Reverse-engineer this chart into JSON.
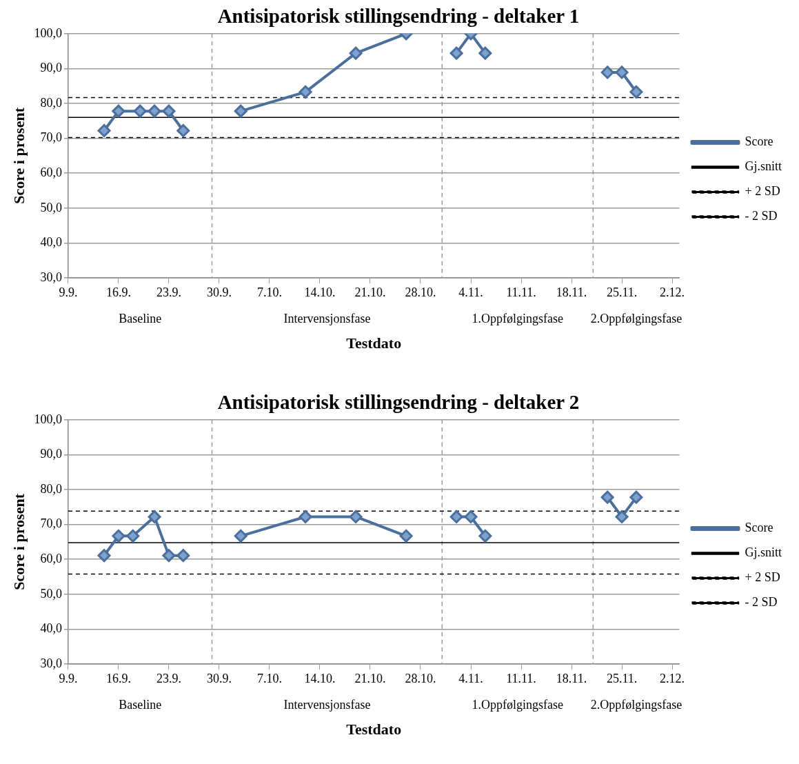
{
  "chart_data": [
    {
      "type": "line",
      "title": "Antisipatorisk stillingsendring - deltaker 1",
      "xlabel": "Testdato",
      "ylabel": "Score i prosent",
      "xlim": [
        "--09-09",
        "--12-03"
      ],
      "ylim": [
        30,
        100
      ],
      "xticks": [
        {
          "value": "--09-09",
          "label": "9.9."
        },
        {
          "value": "--09-16",
          "label": "16.9."
        },
        {
          "value": "--09-23",
          "label": "23.9."
        },
        {
          "value": "--09-30",
          "label": "30.9."
        },
        {
          "value": "--10-07",
          "label": "7.10."
        },
        {
          "value": "--10-14",
          "label": "14.10."
        },
        {
          "value": "--10-21",
          "label": "21.10."
        },
        {
          "value": "--10-28",
          "label": "28.10."
        },
        {
          "value": "--11-04",
          "label": "4.11."
        },
        {
          "value": "--11-11",
          "label": "11.11."
        },
        {
          "value": "--11-18",
          "label": "18.11."
        },
        {
          "value": "--11-25",
          "label": "25.11."
        },
        {
          "value": "--12-02",
          "label": "2.12."
        }
      ],
      "yticks": [
        {
          "value": 30,
          "label": "30,0"
        },
        {
          "value": 40,
          "label": "40,0"
        },
        {
          "value": 50,
          "label": "50,0"
        },
        {
          "value": 60,
          "label": "60,0"
        },
        {
          "value": 70,
          "label": "70,0"
        },
        {
          "value": 80,
          "label": "80,0"
        },
        {
          "value": 90,
          "label": "90,0"
        },
        {
          "value": 100,
          "label": "100,0"
        }
      ],
      "grid": "y",
      "legend": "right",
      "series": [
        {
          "name": "Score",
          "color": "#4a6f9c",
          "marker": "diamond",
          "line_style": "solid",
          "x": [
            "--09-14",
            "--09-16",
            "--09-19",
            "--09-21",
            "--09-23",
            "--09-25",
            "--09-29",
            "--10-03",
            "--10-12",
            "--10-19",
            "--10-26",
            "--10-31",
            "--11-02",
            "--11-04",
            "--11-06",
            "--11-21",
            "--11-23",
            "--11-25",
            "--11-27"
          ],
          "values": [
            72.2,
            77.8,
            77.8,
            77.8,
            77.8,
            72.2,
            null,
            77.8,
            83.3,
            94.4,
            100,
            null,
            94.4,
            100,
            94.4,
            null,
            88.9,
            88.9,
            83.3
          ]
        },
        {
          "name": "Gj.snitt",
          "color": "#000000",
          "marker": "none",
          "line_style": "solid",
          "x": [
            "--09-09",
            "--12-03"
          ],
          "values": [
            76.0,
            76.0
          ]
        },
        {
          "name": "+ 2 SD",
          "color": "#000000",
          "marker": "none",
          "line_style": "dashed",
          "x": [
            "--09-09",
            "--12-03"
          ],
          "values": [
            81.7,
            81.7
          ]
        },
        {
          "name": "- 2 SD",
          "color": "#000000",
          "marker": "none",
          "line_style": "dashed",
          "x": [
            "--09-09",
            "--12-03"
          ],
          "values": [
            70.2,
            70.2
          ]
        }
      ],
      "ref_lines": [
        {
          "axis": "x",
          "value": "--09-29",
          "color": "#999999",
          "line_style": "dashed"
        },
        {
          "axis": "x",
          "value": "--10-31",
          "color": "#999999",
          "line_style": "dashed"
        },
        {
          "axis": "x",
          "value": "--11-21",
          "color": "#999999",
          "line_style": "dashed"
        }
      ],
      "annotations": [
        "Baseline",
        "Intervensjonsfase",
        "1.Oppfølgingsfase",
        "2.Oppfølgingsfase"
      ]
    },
    {
      "type": "line",
      "title": "Antisipatorisk stillingsendring - deltaker 2",
      "xlabel": "Testdato",
      "ylabel": "Score i prosent",
      "xlim": [
        "--09-09",
        "--12-03"
      ],
      "ylim": [
        30,
        100
      ],
      "xticks": [
        {
          "value": "--09-09",
          "label": "9.9."
        },
        {
          "value": "--09-16",
          "label": "16.9."
        },
        {
          "value": "--09-23",
          "label": "23.9."
        },
        {
          "value": "--09-30",
          "label": "30.9."
        },
        {
          "value": "--10-07",
          "label": "7.10."
        },
        {
          "value": "--10-14",
          "label": "14.10."
        },
        {
          "value": "--10-21",
          "label": "21.10."
        },
        {
          "value": "--10-28",
          "label": "28.10."
        },
        {
          "value": "--11-04",
          "label": "4.11."
        },
        {
          "value": "--11-11",
          "label": "11.11."
        },
        {
          "value": "--11-18",
          "label": "18.11."
        },
        {
          "value": "--11-25",
          "label": "25.11."
        },
        {
          "value": "--12-02",
          "label": "2.12."
        }
      ],
      "yticks": [
        {
          "value": 30,
          "label": "30,0"
        },
        {
          "value": 40,
          "label": "40,0"
        },
        {
          "value": 50,
          "label": "50,0"
        },
        {
          "value": 60,
          "label": "60,0"
        },
        {
          "value": 70,
          "label": "70,0"
        },
        {
          "value": 80,
          "label": "80,0"
        },
        {
          "value": 90,
          "label": "90,0"
        },
        {
          "value": 100,
          "label": "100,0"
        }
      ],
      "grid": "y",
      "legend": "right",
      "series": [
        {
          "name": "Score",
          "color": "#4a6f9c",
          "marker": "diamond",
          "line_style": "solid",
          "x": [
            "--09-14",
            "--09-16",
            "--09-18",
            "--09-21",
            "--09-23",
            "--09-25",
            "--09-29",
            "--10-03",
            "--10-12",
            "--10-19",
            "--10-26",
            "--10-31",
            "--11-02",
            "--11-04",
            "--11-06",
            "--11-21",
            "--11-23",
            "--11-25",
            "--11-27"
          ],
          "values": [
            61.1,
            66.7,
            66.7,
            72.2,
            61.1,
            61.1,
            null,
            66.7,
            72.2,
            72.2,
            66.7,
            null,
            72.2,
            72.2,
            66.7,
            null,
            77.8,
            72.2,
            77.8
          ]
        },
        {
          "name": "Gj.snitt",
          "color": "#000000",
          "marker": "none",
          "line_style": "solid",
          "x": [
            "--09-09",
            "--12-03"
          ],
          "values": [
            64.8,
            64.8
          ]
        },
        {
          "name": "+ 2 SD",
          "color": "#000000",
          "marker": "none",
          "line_style": "dashed",
          "x": [
            "--09-09",
            "--12-03"
          ],
          "values": [
            73.8,
            73.8
          ]
        },
        {
          "name": "- 2 SD",
          "color": "#000000",
          "marker": "none",
          "line_style": "dashed",
          "x": [
            "--09-09",
            "--12-03"
          ],
          "values": [
            55.8,
            55.8
          ]
        }
      ],
      "ref_lines": [
        {
          "axis": "x",
          "value": "--09-29",
          "color": "#999999",
          "line_style": "dashed"
        },
        {
          "axis": "x",
          "value": "--10-31",
          "color": "#999999",
          "line_style": "dashed"
        },
        {
          "axis": "x",
          "value": "--11-21",
          "color": "#999999",
          "line_style": "dashed"
        }
      ],
      "annotations": [
        "Baseline",
        "Intervensjonsfase",
        "1.Oppfølgingsfase",
        "2.Oppfølgingsfase"
      ]
    }
  ]
}
